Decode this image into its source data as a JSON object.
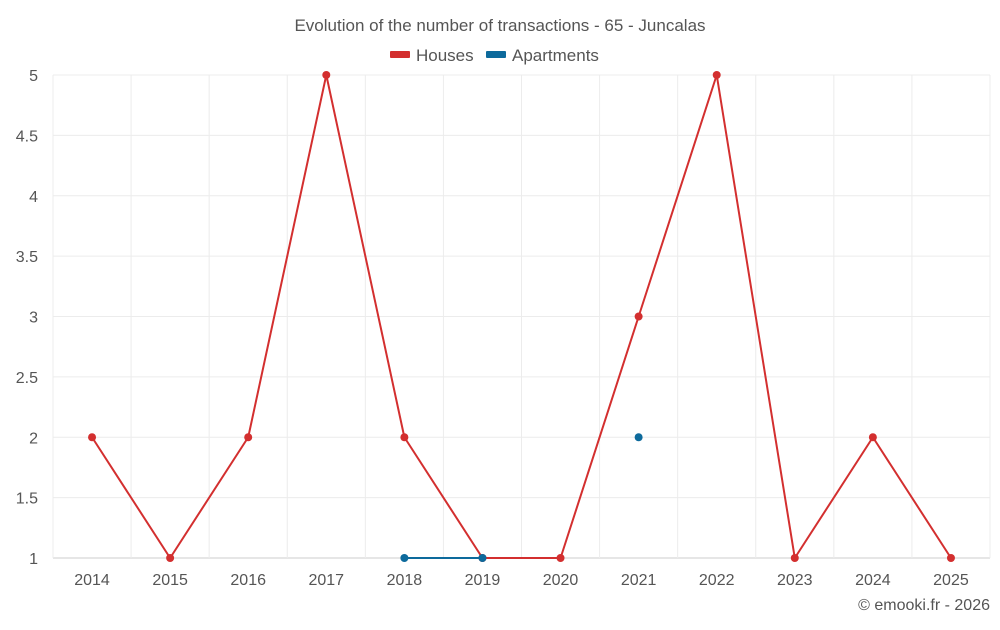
{
  "chart_data": {
    "type": "line",
    "title": "Evolution of the number of transactions - 65 - Juncalas",
    "categories": [
      "2014",
      "2015",
      "2016",
      "2017",
      "2018",
      "2019",
      "2020",
      "2021",
      "2022",
      "2023",
      "2024",
      "2025"
    ],
    "series": [
      {
        "name": "Houses",
        "color": "#d32f2f",
        "values": [
          2,
          1,
          2,
          5,
          2,
          1,
          1,
          3,
          5,
          1,
          2,
          1
        ]
      },
      {
        "name": "Apartments",
        "color": "#0d6a9c",
        "values": [
          null,
          null,
          null,
          null,
          1,
          1,
          null,
          2,
          null,
          null,
          null,
          null
        ]
      }
    ],
    "ylim": [
      1,
      5
    ],
    "yticks": [
      "1",
      "1.5",
      "2",
      "2.5",
      "3",
      "3.5",
      "4",
      "4.5",
      "5"
    ],
    "grid": true,
    "legend": "top-center",
    "credit": "© emooki.fr - 2026"
  }
}
